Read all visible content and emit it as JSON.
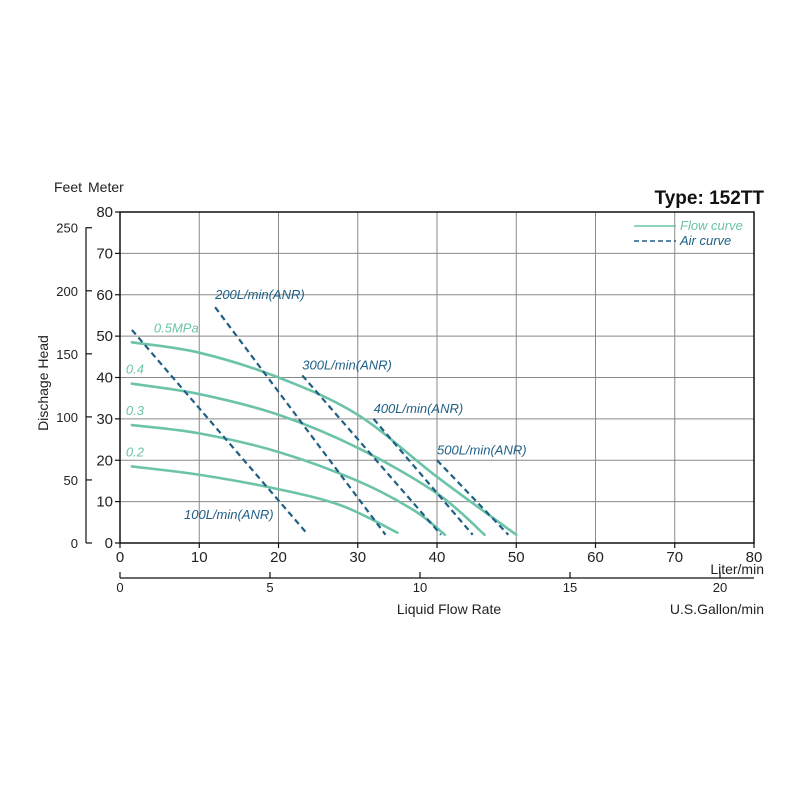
{
  "chart_data": {
    "type": "line",
    "title": "Type: 152TT",
    "y_left_unit": "Feet",
    "y_right_unit": "Meter",
    "ylabel": "Dischage Head",
    "xlabel": "Liquid Flow Rate",
    "x_unit_liter": "Liter/min",
    "x_unit_gallon": "U.S.Gallon/min",
    "xlim": [
      0,
      80
    ],
    "ylim": [
      0,
      80
    ],
    "x_ticks_liter": [
      "0",
      "10",
      "20",
      "30",
      "40",
      "50",
      "60",
      "70",
      "80"
    ],
    "x_ticks_gallon": [
      "0",
      "5",
      "10",
      "15",
      "20"
    ],
    "y_ticks_meter": [
      "0",
      "10",
      "20",
      "30",
      "40",
      "50",
      "60",
      "70",
      "80"
    ],
    "y_ticks_feet": [
      "0",
      "50",
      "100",
      "150",
      "200",
      "250"
    ],
    "grid": true,
    "legend": {
      "placement": "top-right",
      "entries": [
        {
          "name": "Flow curve",
          "style": "solid",
          "color": "#6cc3a8"
        },
        {
          "name": "Air curve",
          "style": "dashed",
          "color": "#1f5f86"
        }
      ]
    },
    "colors": {
      "flow": "#6cc3a8",
      "air": "#1f5f86",
      "grid": "#8a8a8a",
      "axis": "#111111"
    },
    "flow_series": [
      {
        "label": "0.5MPa",
        "points": [
          [
            1.5,
            48.5
          ],
          [
            10,
            46
          ],
          [
            20,
            40
          ],
          [
            30,
            31
          ],
          [
            40,
            16
          ],
          [
            50,
            2
          ]
        ]
      },
      {
        "label": "0.4",
        "points": [
          [
            1.5,
            38.5
          ],
          [
            10,
            36
          ],
          [
            20,
            31
          ],
          [
            30,
            23
          ],
          [
            40,
            12
          ],
          [
            46,
            2
          ]
        ]
      },
      {
        "label": "0.3",
        "points": [
          [
            1.5,
            28.5
          ],
          [
            10,
            26.5
          ],
          [
            20,
            22
          ],
          [
            30,
            15
          ],
          [
            37,
            8
          ],
          [
            41,
            2
          ]
        ]
      },
      {
        "label": "0.2",
        "points": [
          [
            1.5,
            18.5
          ],
          [
            10,
            16.5
          ],
          [
            20,
            13
          ],
          [
            28,
            9
          ],
          [
            35,
            2.5
          ]
        ]
      }
    ],
    "air_series": [
      {
        "label": "100L/min(ANR)",
        "points": [
          [
            1.5,
            51.5
          ],
          [
            23.5,
            2.5
          ]
        ]
      },
      {
        "label": "200L/min(ANR)",
        "points": [
          [
            12,
            57
          ],
          [
            33.5,
            2
          ]
        ]
      },
      {
        "label": "300L/min(ANR)",
        "points": [
          [
            23,
            40.5
          ],
          [
            40.5,
            2
          ]
        ]
      },
      {
        "label": "400L/min(ANR)",
        "points": [
          [
            32,
            30
          ],
          [
            44.5,
            2
          ]
        ]
      },
      {
        "label": "500L/min(ANR)",
        "points": [
          [
            40,
            20
          ],
          [
            49,
            2
          ]
        ]
      }
    ]
  }
}
